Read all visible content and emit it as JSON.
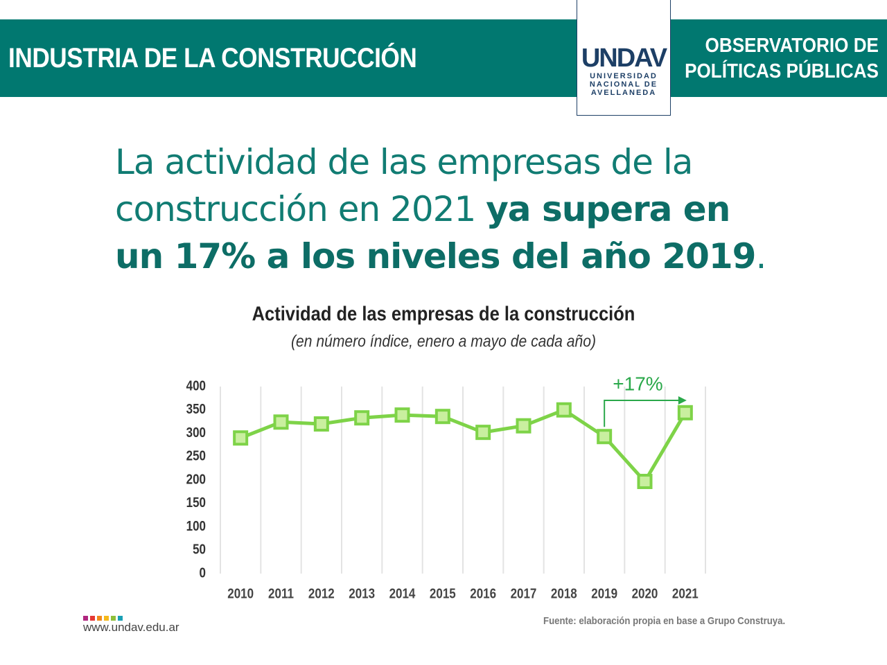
{
  "header": {
    "title": "INDUSTRIA DE LA CONSTRUCCIÓN",
    "right": [
      "OBSERVATORIO DE",
      "POLÍTICAS PÚBLICAS"
    ],
    "logo": {
      "mark": "UNDAV",
      "lines": [
        "UNIVERSIDAD",
        "NACIONAL DE",
        "AVELLANEDA"
      ]
    }
  },
  "headline": [
    "La actividad de las empresas de la construcción en 2021 ",
    "ya supera en un 17% a los niveles del año 2019",
    "."
  ],
  "chart_data": {
    "type": "line",
    "title": "Actividad de las empresas de la construcción",
    "subtitle": "(en número índice, enero a mayo de cada año)",
    "categories": [
      "2010",
      "2011",
      "2012",
      "2013",
      "2014",
      "2015",
      "2016",
      "2017",
      "2018",
      "2019",
      "2020",
      "2021"
    ],
    "series": [
      {
        "name": "Actividad",
        "color": "#7ed348",
        "values": [
          290,
          324,
          320,
          333,
          339,
          336,
          302,
          316,
          350,
          293,
          197,
          344
        ]
      }
    ],
    "ylim": [
      0,
      400
    ],
    "yticks": [
      0,
      50,
      100,
      150,
      200,
      250,
      300,
      350,
      400
    ],
    "annotation": "+17%"
  },
  "footer": {
    "url": "www.undav.edu.ar",
    "source": "Fuente: elaboración propia en base a Grupo Construya."
  }
}
